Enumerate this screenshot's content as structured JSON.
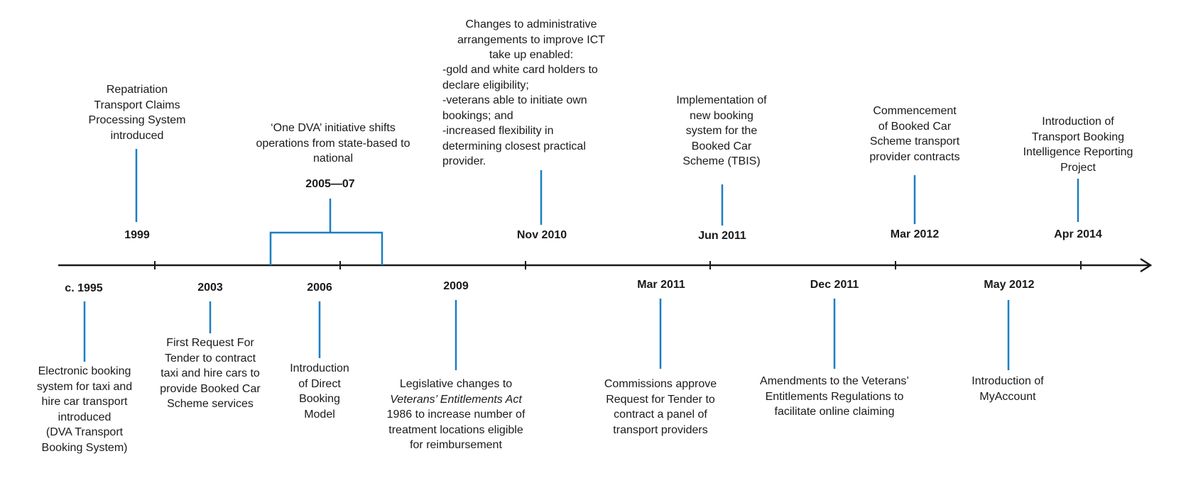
{
  "colors": {
    "axis": "#1a1a1a",
    "connector": "#1a7ec1",
    "text": "#1a1a1a"
  },
  "above": [
    {
      "date": "1999",
      "lines": [
        "Repatriation",
        "Transport Claims",
        "Processing System",
        "introduced"
      ]
    },
    {
      "date": "2005—07",
      "lines": [
        "‘One DVA’ initiative shifts",
        "operations from state-based to",
        "national"
      ]
    },
    {
      "date": "Nov 2010",
      "lines": [
        "Changes to administrative",
        "arrangements to improve ICT",
        "take up enabled:"
      ],
      "list": [
        "-gold and white card holders to",
        "declare eligibility;",
        "-veterans able to initiate own",
        "bookings; and",
        "-increased flexibility in",
        "determining closest practical",
        "provider."
      ]
    },
    {
      "date": "Jun 2011",
      "lines": [
        "Implementation of",
        "new booking",
        "system for the",
        "Booked Car",
        "Scheme (TBIS)"
      ]
    },
    {
      "date": "Mar 2012",
      "lines": [
        "Commencement",
        "of Booked Car",
        "Scheme transport",
        "provider contracts"
      ]
    },
    {
      "date": "Apr 2014",
      "lines": [
        "Introduction of",
        "Transport Booking",
        "Intelligence Reporting",
        "Project"
      ]
    }
  ],
  "below": [
    {
      "date": "c. 1995",
      "lines": [
        "Electronic booking",
        "system for taxi and",
        "hire car transport",
        "introduced",
        "(DVA Transport",
        "Booking System)"
      ]
    },
    {
      "date": "2003",
      "lines": [
        "First Request For",
        "Tender to contract",
        "taxi and hire cars to",
        "provide Booked Car",
        "Scheme services"
      ]
    },
    {
      "date": "2006",
      "lines": [
        "Introduction",
        "of Direct",
        "Booking",
        "Model"
      ]
    },
    {
      "date": "2009",
      "lines": [
        "Legislative changes to",
        "Veterans’ Entitlements Act",
        "1986 to increase number of",
        "treatment locations eligible",
        "for reimbursement"
      ]
    },
    {
      "date": "Mar 2011",
      "lines": [
        "Commissions approve",
        "Request for Tender to",
        "contract a panel of",
        "transport providers"
      ]
    },
    {
      "date": "Dec 2011",
      "lines": [
        "Amendments to the Veterans’",
        "Entitlements Regulations to",
        "facilitate online claiming"
      ]
    },
    {
      "date": "May 2012",
      "lines": [
        "Introduction of",
        "MyAccount"
      ]
    }
  ]
}
